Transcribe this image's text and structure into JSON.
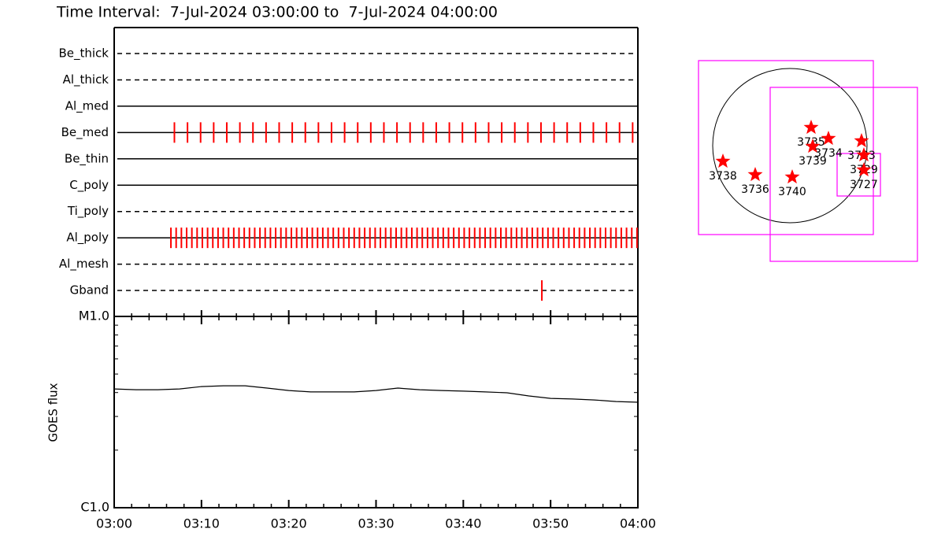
{
  "title": "Time Interval:  7-Jul-2024 03:00:00 to  7-Jul-2024 04:00:00",
  "chart_data": [
    {
      "type": "event",
      "xlim": [
        0,
        60
      ],
      "color": "#ff0000",
      "rows": [
        {
          "name": "Be_thick",
          "style": "dashed",
          "values": []
        },
        {
          "name": "Al_thick",
          "style": "dashed",
          "values": []
        },
        {
          "name": "Al_med",
          "style": "solid",
          "values": []
        },
        {
          "name": "Be_med",
          "style": "solid",
          "values": [
            6.9,
            8.4,
            9.9,
            11.4,
            12.9,
            14.4,
            15.9,
            17.4,
            18.9,
            20.4,
            21.9,
            23.4,
            24.9,
            26.4,
            27.9,
            29.4,
            30.9,
            32.4,
            33.9,
            35.4,
            36.9,
            38.4,
            39.9,
            41.4,
            42.9,
            44.4,
            45.9,
            47.4,
            48.9,
            50.4,
            51.9,
            53.4,
            54.9,
            56.4,
            57.9,
            59.4
          ]
        },
        {
          "name": "Be_thin",
          "style": "solid",
          "values": []
        },
        {
          "name": "C_poly",
          "style": "solid",
          "values": []
        },
        {
          "name": "Ti_poly",
          "style": "dashed",
          "values": []
        },
        {
          "name": "Al_poly",
          "style": "solid",
          "values": [
            6.5,
            7.1,
            7.7,
            8.3,
            8.9,
            9.5,
            10.1,
            10.7,
            11.3,
            11.9,
            12.5,
            13.1,
            13.7,
            14.3,
            14.9,
            15.5,
            16.1,
            16.7,
            17.3,
            17.9,
            18.5,
            19.1,
            19.7,
            20.3,
            20.9,
            21.5,
            22.1,
            22.7,
            23.3,
            23.9,
            24.5,
            25.1,
            25.7,
            26.3,
            26.9,
            27.5,
            28.1,
            28.7,
            29.3,
            29.9,
            30.5,
            31.1,
            31.7,
            32.3,
            32.9,
            33.5,
            34.1,
            34.7,
            35.3,
            35.9,
            36.5,
            37.1,
            37.7,
            38.3,
            38.9,
            39.5,
            40.1,
            40.7,
            41.3,
            41.9,
            42.5,
            43.1,
            43.7,
            44.3,
            44.9,
            45.5,
            46.1,
            46.7,
            47.3,
            47.9,
            48.5,
            49.1,
            49.7,
            50.3,
            50.9,
            51.5,
            52.1,
            52.7,
            53.3,
            53.9,
            54.5,
            55.1,
            55.7,
            56.3,
            56.9,
            57.5,
            58.1,
            58.7,
            59.3,
            59.9
          ]
        },
        {
          "name": "Al_mesh",
          "style": "dashed",
          "values": []
        },
        {
          "name": "Gband",
          "style": "dashed",
          "values": [
            49.0
          ]
        }
      ]
    },
    {
      "type": "line",
      "y_label": "GOES flux",
      "log_scale": true,
      "color": "#000000",
      "x": [
        0,
        2.5,
        5,
        7.5,
        10,
        12.5,
        15,
        17.5,
        20,
        22.5,
        25,
        27.5,
        30,
        32.5,
        35,
        37.5,
        40,
        42.5,
        45,
        47.5,
        50,
        52.5,
        55,
        57.5,
        60
      ],
      "values": [
        4.18e-06,
        4.14e-06,
        4.14e-06,
        4.18e-06,
        4.3e-06,
        4.34e-06,
        4.34e-06,
        4.22e-06,
        4.1e-06,
        4.03e-06,
        4.03e-06,
        4.03e-06,
        4.1e-06,
        4.22e-06,
        4.14e-06,
        4.1e-06,
        4.07e-06,
        4.03e-06,
        3.99e-06,
        3.84e-06,
        3.73e-06,
        3.7e-06,
        3.66e-06,
        3.59e-06,
        3.56e-06
      ],
      "xlim": [
        0,
        60
      ],
      "xticks": [
        {
          "value": 0,
          "label": "03:00"
        },
        {
          "value": 10,
          "label": "03:10"
        },
        {
          "value": 20,
          "label": "03:20"
        },
        {
          "value": 30,
          "label": "03:30"
        },
        {
          "value": 40,
          "label": "03:40"
        },
        {
          "value": 50,
          "label": "03:50"
        },
        {
          "value": 60,
          "label": "04:00"
        }
      ],
      "xminorticks": [
        2,
        4,
        6,
        8,
        12,
        14,
        16,
        18,
        22,
        24,
        26,
        28,
        32,
        34,
        36,
        38,
        42,
        44,
        46,
        48,
        52,
        54,
        56,
        58
      ],
      "ylim": [
        1e-06,
        1e-05
      ],
      "yticks": [
        {
          "value": 1e-06,
          "label": "C1.0"
        },
        {
          "value": 1e-05,
          "label": "M1.0"
        }
      ],
      "yminorticks": [
        2e-06,
        3e-06,
        4e-06,
        5e-06,
        6e-06,
        7e-06,
        8e-06,
        9e-06
      ]
    },
    {
      "type": "map",
      "star_color": "#ff0000",
      "box_color": "#ff00ff",
      "regions": [
        "3738",
        "3736",
        "3740",
        "3735",
        "3739",
        "3734",
        "3733",
        "3729",
        "3727"
      ]
    }
  ]
}
